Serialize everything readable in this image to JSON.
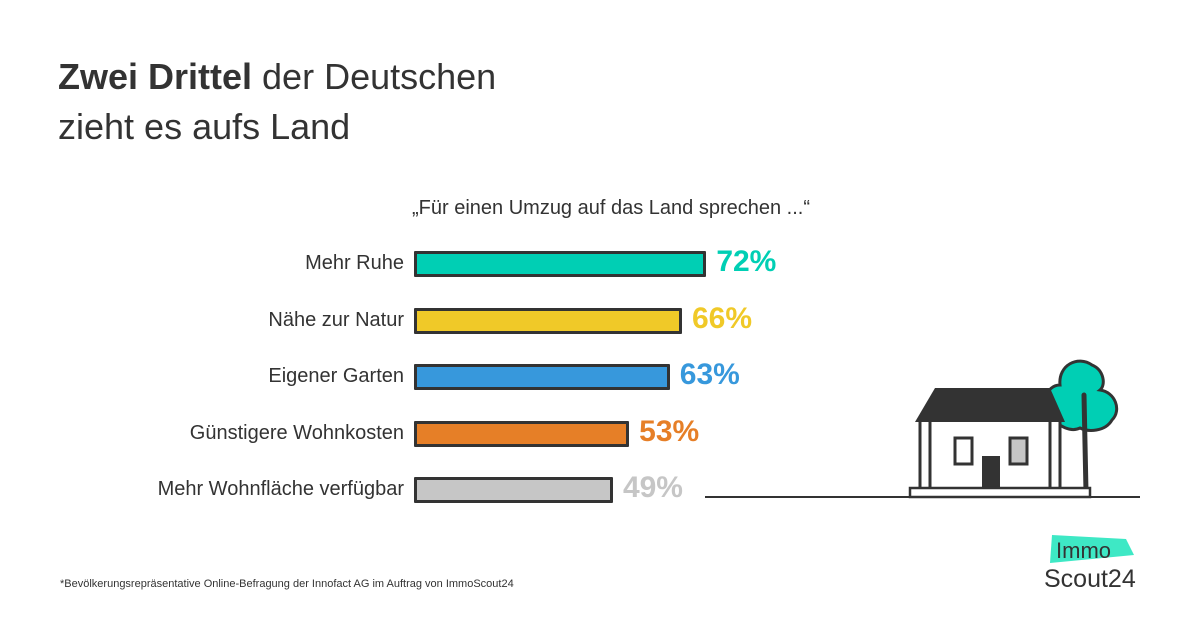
{
  "header": {
    "title_bold": "Zwei Drittel",
    "title_rest_line1": " der Deutschen",
    "title_line2": "zieht es aufs Land"
  },
  "chart_data": {
    "type": "bar",
    "orientation": "horizontal",
    "title": "Zwei Drittel der Deutschen zieht es aufs Land",
    "subtitle": "„Für einen Umzug auf das Land sprechen ...“",
    "xlabel": "",
    "ylabel": "",
    "unit": "%",
    "xlim": [
      0,
      100
    ],
    "grid": false,
    "categories": [
      "Mehr Ruhe",
      "Nähe zur Natur",
      "Eigener Garten",
      "Günstigere Wohnkosten",
      "Mehr Wohnfläche verfügbar"
    ],
    "values": [
      72,
      66,
      63,
      53,
      49
    ],
    "value_labels": [
      "72%",
      "66%",
      "63%",
      "53%",
      "49%"
    ],
    "colors": [
      "#00cfb4",
      "#f0c928",
      "#3798dc",
      "#e67f27",
      "#c6c6c6"
    ]
  },
  "footnote": "*Bevölkerungsrepräsentative Online-Befragung der Innofact AG im Auftrag von ImmoScout24",
  "logo": {
    "line1": "Immo",
    "line2": "Scout24",
    "accent": "#3ee8c5"
  },
  "illustration": {
    "name": "house-with-tree",
    "tree_color": "#00cfb4"
  }
}
